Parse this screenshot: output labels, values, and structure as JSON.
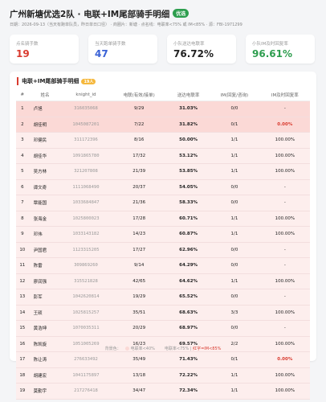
{
  "header": {
    "title": "广州新塘优选2队 · 电联+IM尾部骑手明细",
    "badge": "优选",
    "subtitle": "日期：2026-09-13（当天有跑单队员，昨日单日口径） · 商圈片：新塘 · 点名线：电联率<75% 或 IM<85% · 源：FBI-1971299"
  },
  "cards": [
    {
      "label": "点名骑手数",
      "value": "19"
    },
    {
      "label": "当天跑单骑手数",
      "value": "47"
    },
    {
      "label": "小队送达电联率",
      "value": "76.72%"
    },
    {
      "label": "小队IM及时回复率",
      "value": "96.61%"
    }
  ],
  "section": {
    "title": "电联+IM尾部骑手明细",
    "badge": "19人"
  },
  "table": {
    "columns": [
      "#",
      "姓名",
      "knight_id",
      "电联(有效/接单)",
      "送达电联率",
      "IM(回复/咨询)",
      "IM及时回复率"
    ],
    "rows": [
      [
        "1",
        "卢旭",
        "316035068",
        "9/29",
        "31.03%",
        "0/0",
        "-"
      ],
      [
        "2",
        "胡佳明",
        "1045087201",
        "7/22",
        "31.82%",
        "0/1",
        "0.00%"
      ],
      [
        "3",
        "邓健民",
        "311172396",
        "8/16",
        "50.00%",
        "1/1",
        "100.00%"
      ],
      [
        "4",
        "胡佳华",
        "1091865780",
        "17/32",
        "53.12%",
        "1/1",
        "100.00%"
      ],
      [
        "5",
        "吴方林",
        "321207808",
        "21/39",
        "53.85%",
        "1/1",
        "100.00%"
      ],
      [
        "6",
        "谭文奇",
        "1111068490",
        "20/37",
        "54.05%",
        "0/0",
        "-"
      ],
      [
        "7",
        "覃能国",
        "1033684847",
        "21/36",
        "58.33%",
        "0/0",
        "-"
      ],
      [
        "8",
        "张海金",
        "1025800023",
        "17/28",
        "60.71%",
        "1/1",
        "100.00%"
      ],
      [
        "9",
        "邓伟",
        "1033143182",
        "14/23",
        "60.87%",
        "1/1",
        "100.00%"
      ],
      [
        "10",
        "尹国君",
        "1123315205",
        "17/27",
        "62.96%",
        "0/0",
        "-"
      ],
      [
        "11",
        "陈雷",
        "309869260",
        "9/14",
        "64.29%",
        "0/0",
        "-"
      ],
      [
        "12",
        "廖润强",
        "315521828",
        "42/65",
        "64.62%",
        "1/1",
        "100.00%"
      ],
      [
        "13",
        "彭军",
        "1042620814",
        "19/29",
        "65.52%",
        "0/0",
        "-"
      ],
      [
        "14",
        "王硕",
        "1025815257",
        "35/51",
        "68.63%",
        "3/3",
        "100.00%"
      ],
      [
        "15",
        "黄浩坤",
        "1070035311",
        "20/29",
        "68.97%",
        "0/0",
        "-"
      ],
      [
        "16",
        "陈凯旋",
        "1051005269",
        "16/23",
        "69.57%",
        "2/2",
        "100.00%"
      ],
      [
        "17",
        "陈让涛",
        "276633492",
        "35/49",
        "71.43%",
        "0/1",
        "0.00%"
      ],
      [
        "18",
        "胡建宏",
        "1041175897",
        "13/18",
        "72.22%",
        "1/1",
        "100.00%"
      ],
      [
        "19",
        "莫勤宇",
        "217276418",
        "34/47",
        "72.34%",
        "1/1",
        "100.00%"
      ]
    ]
  },
  "legend": {
    "label": "背景色：",
    "items": [
      "电联率<40%",
      "电联率<75%"
    ],
    "separator": "|",
    "note": "红字=IM<85%"
  }
}
